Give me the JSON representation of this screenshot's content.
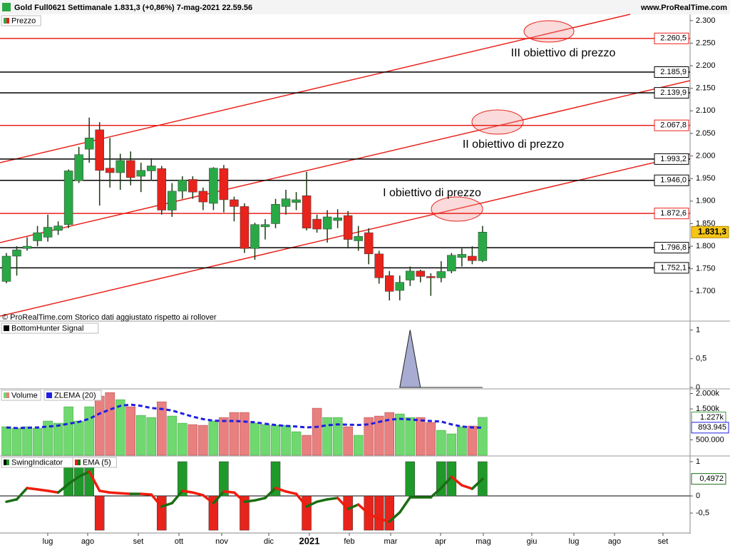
{
  "header": {
    "title": "Gold Full0621 Settimanale 1.831,3 (+0,86%) 7-mag-2021 22.59.56",
    "site": "www.ProRealTime.com"
  },
  "chart_data": [
    {
      "type": "candlestick",
      "legend": "Prezzo",
      "note": "© ProRealTime.com  Storico dati aggiustato rispetto ai rollover",
      "open": [
        1722,
        1778,
        1795,
        1812,
        1820,
        1835,
        1848,
        1945,
        2015,
        2058,
        1973,
        1963,
        1990,
        1955,
        1967,
        1972,
        1880,
        1922,
        1948,
        1922,
        1895,
        1972,
        1903,
        1888,
        1795,
        1843,
        1850,
        1888,
        1897,
        1912,
        1860,
        1838,
        1857,
        1868,
        1812,
        1830,
        1783,
        1735,
        1702,
        1725,
        1745,
        1733,
        1730,
        1745,
        1775,
        1778,
        1768
      ],
      "high": [
        1785,
        1800,
        1820,
        1845,
        1870,
        1855,
        1970,
        2020,
        2085,
        2075,
        2040,
        2005,
        2010,
        1985,
        1995,
        1978,
        1940,
        1955,
        1955,
        1930,
        1975,
        1980,
        1910,
        1895,
        1852,
        1860,
        1905,
        1925,
        1920,
        1965,
        1870,
        1880,
        1882,
        1878,
        1845,
        1840,
        1790,
        1745,
        1735,
        1755,
        1748,
        1740,
        1767,
        1785,
        1795,
        1800,
        1845
      ],
      "low": [
        1718,
        1735,
        1790,
        1800,
        1810,
        1825,
        1840,
        1940,
        1985,
        1890,
        1930,
        1925,
        1935,
        1920,
        1945,
        1870,
        1865,
        1905,
        1905,
        1880,
        1880,
        1875,
        1855,
        1785,
        1770,
        1815,
        1840,
        1870,
        1880,
        1835,
        1830,
        1808,
        1840,
        1795,
        1790,
        1760,
        1717,
        1680,
        1680,
        1712,
        1720,
        1690,
        1720,
        1740,
        1755,
        1760,
        1765
      ],
      "close": [
        1778,
        1792,
        1800,
        1830,
        1842,
        1845,
        1967,
        2003,
        2040,
        1968,
        1963,
        1990,
        1952,
        1968,
        1978,
        1880,
        1922,
        1947,
        1920,
        1898,
        1973,
        1903,
        1888,
        1795,
        1848,
        1848,
        1893,
        1905,
        1903,
        1840,
        1838,
        1865,
        1863,
        1815,
        1822,
        1783,
        1730,
        1700,
        1720,
        1745,
        1733,
        1730,
        1744,
        1780,
        1782,
        1768,
        1831.3
      ],
      "up_color": "#2aa845",
      "down_color": "#e8231c",
      "ylim": [
        1642,
        2314
      ],
      "yticks": [
        {
          "value": 1700,
          "label": "1.700"
        },
        {
          "value": 1750,
          "label": "1.750"
        },
        {
          "value": 1800,
          "label": "1.800"
        },
        {
          "value": 1850,
          "label": "1.850"
        },
        {
          "value": 1900,
          "label": "1.900"
        },
        {
          "value": 1950,
          "label": "1.950"
        },
        {
          "value": 2000,
          "label": "2.000"
        },
        {
          "value": 2050,
          "label": "2.050"
        },
        {
          "value": 2100,
          "label": "2.100"
        },
        {
          "value": 2150,
          "label": "2.150"
        },
        {
          "value": 2200,
          "label": "2.200"
        },
        {
          "value": 2250,
          "label": "2.250"
        },
        {
          "value": 2300,
          "label": "2.300"
        }
      ],
      "levels": [
        {
          "value": 2260.5,
          "label": "2.260,5",
          "color": "#e8231c"
        },
        {
          "value": 2185.9,
          "label": "2.185,9",
          "color": "#000000"
        },
        {
          "value": 2139.9,
          "label": "2.139,9",
          "color": "#000000"
        },
        {
          "value": 2067.8,
          "label": "2.067,8",
          "color": "#e8231c"
        },
        {
          "value": 1993.2,
          "label": "1.993,2",
          "color": "#000000"
        },
        {
          "value": 1946.0,
          "label": "1.946,0",
          "color": "#000000"
        },
        {
          "value": 1872.6,
          "label": "1.872,6",
          "color": "#e8231c"
        },
        {
          "value": 1796.8,
          "label": "1.796,8",
          "color": "#000000"
        },
        {
          "value": 1752.1,
          "label": "1.752,1",
          "color": "#000000"
        }
      ],
      "last_price": {
        "value": 1831.3,
        "label": "1.831,3"
      },
      "annotations": [
        "III obiettivo di prezzo",
        "II obiettivo di prezzo",
        "I obiettivo di prezzo"
      ],
      "x_labels": [
        "lug",
        "ago",
        "set",
        "ott",
        "nov",
        "dic",
        "2021",
        "feb",
        "mar",
        "apr",
        "mag",
        "giu",
        "lug",
        "ago",
        "set"
      ]
    },
    {
      "type": "area",
      "legend": "BottomHunter Signal",
      "color": "#a8abd2",
      "values": [
        null,
        null,
        null,
        null,
        null,
        null,
        null,
        null,
        null,
        null,
        null,
        null,
        null,
        null,
        null,
        null,
        null,
        null,
        null,
        null,
        null,
        null,
        null,
        null,
        null,
        null,
        null,
        null,
        null,
        null,
        null,
        null,
        null,
        null,
        null,
        null,
        null,
        null,
        0,
        1,
        0,
        0,
        0,
        0,
        0,
        0,
        0
      ],
      "ylim": [
        0,
        1.13
      ],
      "yticks": [
        0,
        {
          "value": 0.5,
          "label": "0,5"
        },
        1
      ]
    },
    {
      "type": "volume",
      "series": [
        {
          "name": "Volume",
          "values": [
            924000,
            878000,
            924000,
            878000,
            1109000,
            1039000,
            1570000,
            1109000,
            1570000,
            1917000,
            2032000,
            1801000,
            1570000,
            1293000,
            1224000,
            1732000,
            1270000,
            1039000,
            993000,
            970000,
            1109000,
            1224000,
            1386000,
            1386000,
            1039000,
            993000,
            970000,
            970000,
            762000,
            647000,
            1524000,
            1224000,
            1224000,
            924000,
            647000,
            1224000,
            1270000,
            1386000,
            1339000,
            1224000,
            1224000,
            1062000,
            808000,
            693000,
            924000,
            947000,
            1227000
          ],
          "last_label": "1.227k",
          "color": "#2aa845"
        },
        {
          "name": "ZLEMA (20)",
          "color": "#1f1fe0",
          "values": [
            900000,
            880000,
            890000,
            900000,
            930000,
            960000,
            1020000,
            1080000,
            1180000,
            1350000,
            1480000,
            1600000,
            1640000,
            1600000,
            1530000,
            1500000,
            1450000,
            1350000,
            1250000,
            1170000,
            1120000,
            1110000,
            1110000,
            1090000,
            1070000,
            1020000,
            980000,
            950000,
            930000,
            900000,
            920000,
            970000,
            1000000,
            990000,
            980000,
            1000000,
            1080000,
            1150000,
            1180000,
            1160000,
            1130000,
            1110000,
            1090000,
            1000000,
            930000,
            900000,
            893945
          ],
          "last_label": "893.945"
        }
      ],
      "ylim": [
        0,
        2150000
      ],
      "yticks": [
        {
          "value": 500000,
          "label": "500.000"
        },
        {
          "value": 1500000,
          "label": "1.500k"
        },
        {
          "value": 2000000,
          "label": "2.000k"
        }
      ]
    },
    {
      "type": "swing",
      "series": [
        {
          "name": "SwingIndicator",
          "values": [
            0,
            0,
            0,
            0,
            0,
            0,
            1,
            1,
            1,
            -1,
            0,
            0,
            0,
            0,
            0,
            -1,
            0,
            1,
            0,
            0,
            -1,
            1,
            0,
            -1,
            0,
            0,
            1,
            0,
            0,
            -1,
            0,
            0,
            0,
            -1,
            0,
            -1,
            -1,
            -1,
            0,
            1,
            0,
            0,
            1,
            1,
            0,
            0,
            1
          ],
          "up_color": "#1f9a2a",
          "down_color": "#e8231c"
        },
        {
          "name": "EMA (5)",
          "values": [
            -0.17,
            -0.1,
            0.23,
            0.19,
            0.15,
            0.1,
            0.35,
            0.56,
            0.71,
            0.15,
            0.1,
            0.08,
            0.06,
            0.06,
            0.04,
            -0.31,
            -0.21,
            0.15,
            0.1,
            0.02,
            -0.21,
            0.13,
            0.1,
            -0.17,
            -0.13,
            -0.06,
            0.23,
            0.13,
            0.06,
            -0.31,
            -0.17,
            -0.1,
            -0.06,
            -0.38,
            -0.25,
            -0.52,
            -0.67,
            -0.75,
            -0.48,
            -0.04,
            -0.04,
            -0.04,
            0.23,
            0.56,
            0.31,
            0.21,
            0.4972
          ],
          "last_label": "0,4972",
          "up_color": "#1a6e12",
          "down_color": "#f01c0c"
        }
      ],
      "ylim": [
        -1.04,
        1.125
      ],
      "yticks": [
        {
          "value": -0.5,
          "label": "-0,5"
        },
        0,
        1
      ]
    }
  ]
}
